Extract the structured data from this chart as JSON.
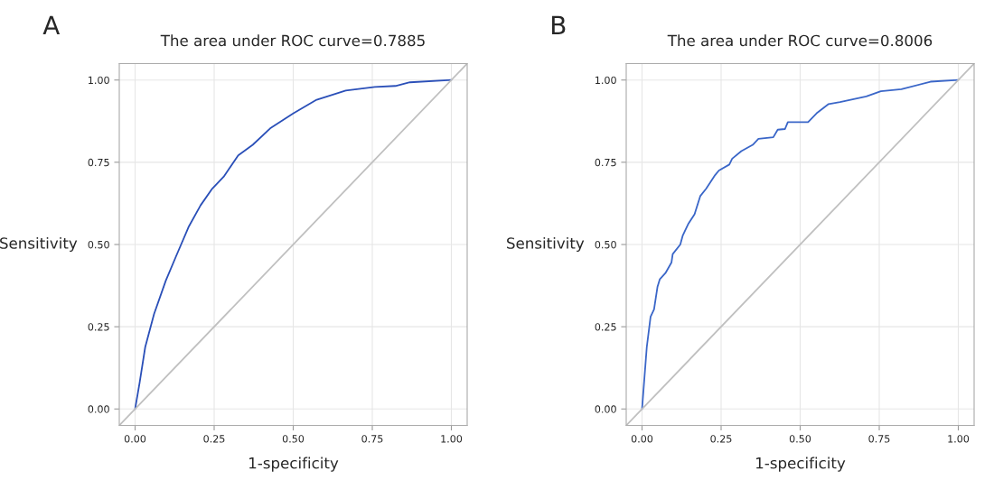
{
  "chart_data": [
    {
      "type": "line",
      "title": "The area under ROC curve=0.7885",
      "xlabel": "1-specificity",
      "ylabel": "Sensitivity",
      "annotations": [
        "A"
      ],
      "xlim": [
        -0.05,
        1.05
      ],
      "ylim": [
        -0.05,
        1.05
      ],
      "xticks": [
        {
          "value": 0,
          "label": "0.00"
        },
        {
          "value": 0.25,
          "label": "0.25"
        },
        {
          "value": 0.5,
          "label": "0.50"
        },
        {
          "value": 0.75,
          "label": "0.75"
        },
        {
          "value": 1,
          "label": "1.00"
        }
      ],
      "yticks": [
        {
          "value": 0,
          "label": "0.00"
        },
        {
          "value": 0.25,
          "label": "0.25"
        },
        {
          "value": 0.5,
          "label": "0.50"
        },
        {
          "value": 0.75,
          "label": "0.75"
        },
        {
          "value": 1,
          "label": "1.00"
        }
      ],
      "grid": true,
      "series": [
        {
          "color": "#2a4fb8",
          "x": [
            0,
            0.014,
            0.032,
            0.06,
            0.097,
            0.129,
            0.17,
            0.207,
            0.244,
            0.28,
            0.326,
            0.372,
            0.427,
            0.501,
            0.574,
            0.666,
            0.758,
            0.823,
            0.869,
            1
          ],
          "values": [
            0,
            0.078,
            0.188,
            0.289,
            0.39,
            0.463,
            0.555,
            0.619,
            0.67,
            0.706,
            0.771,
            0.803,
            0.853,
            0.899,
            0.94,
            0.968,
            0.979,
            0.982,
            0.993,
            1
          ]
        },
        {
          "color": "#c0c0c0",
          "x": [
            -0.05,
            1.05
          ],
          "values": [
            -0.05,
            1.05
          ]
        }
      ]
    },
    {
      "type": "line",
      "title": "The area under ROC curve=0.8006",
      "xlabel": "1-specificity",
      "ylabel": "Sensitivity",
      "annotations": [
        "B"
      ],
      "xlim": [
        -0.05,
        1.05
      ],
      "ylim": [
        -0.05,
        1.05
      ],
      "xticks": [
        {
          "value": 0,
          "label": "0.00"
        },
        {
          "value": 0.25,
          "label": "0.25"
        },
        {
          "value": 0.5,
          "label": "0.50"
        },
        {
          "value": 0.75,
          "label": "0.75"
        },
        {
          "value": 1,
          "label": "1.00"
        }
      ],
      "yticks": [
        {
          "value": 0,
          "label": "0.00"
        },
        {
          "value": 0.25,
          "label": "0.25"
        },
        {
          "value": 0.5,
          "label": "0.50"
        },
        {
          "value": 0.75,
          "label": "0.75"
        },
        {
          "value": 1,
          "label": "1.00"
        }
      ],
      "grid": true,
      "series": [
        {
          "color": "#3a66c8",
          "x": [
            0,
            0.015,
            0.027,
            0.038,
            0.049,
            0.056,
            0.074,
            0.093,
            0.097,
            0.121,
            0.129,
            0.147,
            0.166,
            0.184,
            0.203,
            0.231,
            0.243,
            0.276,
            0.285,
            0.314,
            0.35,
            0.368,
            0.415,
            0.429,
            0.452,
            0.461,
            0.525,
            0.552,
            0.59,
            0.626,
            0.709,
            0.755,
            0.82,
            0.912,
            1
          ],
          "values": [
            0,
            0.188,
            0.28,
            0.303,
            0.372,
            0.394,
            0.413,
            0.445,
            0.471,
            0.5,
            0.528,
            0.564,
            0.592,
            0.647,
            0.67,
            0.711,
            0.725,
            0.743,
            0.761,
            0.784,
            0.803,
            0.821,
            0.826,
            0.849,
            0.851,
            0.872,
            0.872,
            0.899,
            0.927,
            0.933,
            0.95,
            0.966,
            0.972,
            0.995,
            1
          ]
        },
        {
          "color": "#c0c0c0",
          "x": [
            -0.05,
            1.05
          ],
          "values": [
            -0.05,
            1.05
          ]
        }
      ]
    }
  ]
}
